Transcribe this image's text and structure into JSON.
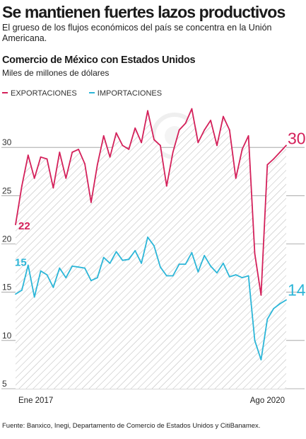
{
  "header": {
    "title": "Se mantienen fuertes lazos productivos",
    "subtitle": "El grueso de los flujos económicos del país se concentra en la Unión Americana."
  },
  "chart_data": {
    "type": "line",
    "title": "Comercio de México con Estados Unidos",
    "ylabel": "Miles de millones de dólares",
    "xlabel": "",
    "ylim": [
      5,
      35
    ],
    "yticks": [
      5,
      10,
      15,
      20,
      25,
      30
    ],
    "grid": "horizontal",
    "legend_position": "top-left",
    "x_tick_labels": [
      {
        "index": 0,
        "label": "Ene 2017"
      },
      {
        "index": 43,
        "label": "Ago 2020"
      }
    ],
    "x": [
      "2017-01",
      "2017-02",
      "2017-03",
      "2017-04",
      "2017-05",
      "2017-06",
      "2017-07",
      "2017-08",
      "2017-09",
      "2017-10",
      "2017-11",
      "2017-12",
      "2018-01",
      "2018-02",
      "2018-03",
      "2018-04",
      "2018-05",
      "2018-06",
      "2018-07",
      "2018-08",
      "2018-09",
      "2018-10",
      "2018-11",
      "2018-12",
      "2019-01",
      "2019-02",
      "2019-03",
      "2019-04",
      "2019-05",
      "2019-06",
      "2019-07",
      "2019-08",
      "2019-09",
      "2019-10",
      "2019-11",
      "2019-12",
      "2020-01",
      "2020-02",
      "2020-03",
      "2020-04",
      "2020-05",
      "2020-06",
      "2020-07",
      "2020-08"
    ],
    "series": [
      {
        "name": "EXPORTACIONES",
        "color": "#d4205a",
        "values": [
          22,
          26,
          29.2,
          26.8,
          29,
          28.8,
          25.8,
          29.5,
          26.8,
          29.5,
          29.8,
          28.3,
          24.3,
          28.2,
          31.2,
          29,
          31.5,
          30.2,
          29.8,
          32,
          30.5,
          33.8,
          30.8,
          30.2,
          26,
          29.5,
          31.8,
          32.5,
          34,
          30.5,
          31.8,
          32.8,
          30.2,
          33.2,
          31.8,
          26.8,
          29.8,
          31.2,
          19,
          14.7,
          28.2,
          28.8,
          29.5,
          30.2
        ],
        "start_label": "22",
        "end_label": "30"
      },
      {
        "name": "IMPORTACIONES",
        "color": "#2cb6d8",
        "values": [
          14.8,
          15.2,
          17.8,
          14.5,
          17.2,
          16.8,
          15.5,
          17.5,
          16.5,
          17.7,
          17.6,
          17.5,
          16.2,
          16.5,
          18.6,
          18,
          19.2,
          18.3,
          18.4,
          19.3,
          18,
          20.7,
          19.8,
          17.6,
          16.7,
          16.7,
          17.9,
          17.9,
          19.1,
          17.1,
          18.8,
          17.7,
          17,
          18,
          16.6,
          16.8,
          16.5,
          16.7,
          10,
          8,
          12.2,
          13.3,
          13.8,
          14.2
        ],
        "start_label": "15",
        "end_label": "14"
      }
    ],
    "source": "Fuente: Banxico, Inegi, Departamento de Comercio de Estados Unidos y CitiBanamex."
  }
}
